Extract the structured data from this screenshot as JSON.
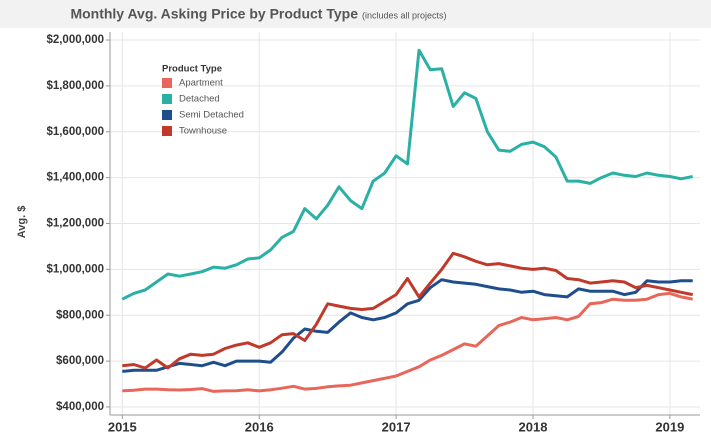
{
  "chart_data": {
    "type": "line",
    "title": "Monthly Avg. Asking Price by Product Type",
    "subtitle": "(includes all projects)",
    "y_label": "Avg. $",
    "legend_title": "Product Type",
    "legend": "upper-left",
    "grid": true,
    "xlim": [
      2014.91,
      2019.22
    ],
    "xticks": [
      2015,
      2016,
      2017,
      2018,
      2019
    ],
    "ylim": [
      365000,
      2035000
    ],
    "yticks": [
      {
        "value": 400000,
        "label": "$400,000"
      },
      {
        "value": 600000,
        "label": "$600,000"
      },
      {
        "value": 800000,
        "label": "$800,000"
      },
      {
        "value": 1000000,
        "label": "$1,000,000"
      },
      {
        "value": 1200000,
        "label": "$1,200,000"
      },
      {
        "value": 1400000,
        "label": "$1,400,000"
      },
      {
        "value": 1600000,
        "label": "$1,600,000"
      },
      {
        "value": 1800000,
        "label": "$1,800,000"
      },
      {
        "value": 2000000,
        "label": "$2,000,000"
      }
    ],
    "x": [
      2015,
      2015.083,
      2015.167,
      2015.25,
      2015.333,
      2015.417,
      2015.5,
      2015.583,
      2015.667,
      2015.75,
      2015.833,
      2015.917,
      2016,
      2016.083,
      2016.167,
      2016.25,
      2016.333,
      2016.417,
      2016.5,
      2016.583,
      2016.667,
      2016.75,
      2016.833,
      2016.917,
      2017,
      2017.083,
      2017.167,
      2017.25,
      2017.333,
      2017.417,
      2017.5,
      2017.583,
      2017.667,
      2017.75,
      2017.833,
      2017.917,
      2018,
      2018.083,
      2018.167,
      2018.25,
      2018.333,
      2018.417,
      2018.5,
      2018.583,
      2018.667,
      2018.75,
      2018.833,
      2018.917,
      2019,
      2019.083,
      2019.167
    ],
    "series": [
      {
        "name": "Apartment",
        "color": "#e8675a",
        "values": [
          470000,
          473000,
          478000,
          478000,
          475000,
          474000,
          476000,
          480000,
          468000,
          470000,
          471000,
          475000,
          470000,
          475000,
          482000,
          490000,
          478000,
          481000,
          488000,
          492000,
          495000,
          505000,
          515000,
          525000,
          535000,
          555000,
          575000,
          605000,
          625000,
          650000,
          675000,
          665000,
          710000,
          755000,
          770000,
          790000,
          780000,
          785000,
          790000,
          780000,
          795000,
          850000,
          855000,
          870000,
          865000,
          865000,
          870000,
          890000,
          895000,
          880000,
          870000
        ]
      },
      {
        "name": "Detached",
        "color": "#2ab0a5",
        "values": [
          870000,
          895000,
          910000,
          945000,
          980000,
          970000,
          980000,
          990000,
          1010000,
          1005000,
          1020000,
          1045000,
          1050000,
          1085000,
          1140000,
          1165000,
          1265000,
          1220000,
          1280000,
          1360000,
          1300000,
          1265000,
          1385000,
          1420000,
          1495000,
          1460000,
          1955000,
          1870000,
          1875000,
          1710000,
          1770000,
          1745000,
          1600000,
          1520000,
          1515000,
          1545000,
          1555000,
          1535000,
          1490000,
          1385000,
          1385000,
          1375000,
          1400000,
          1420000,
          1410000,
          1405000,
          1420000,
          1410000,
          1405000,
          1395000,
          1405000
        ]
      },
      {
        "name": "Semi Detached",
        "color": "#1f4e8c",
        "values": [
          555000,
          560000,
          560000,
          560000,
          575000,
          590000,
          585000,
          580000,
          595000,
          580000,
          600000,
          600000,
          600000,
          595000,
          640000,
          700000,
          740000,
          730000,
          725000,
          770000,
          810000,
          790000,
          780000,
          790000,
          810000,
          850000,
          865000,
          920000,
          955000,
          945000,
          940000,
          935000,
          925000,
          915000,
          910000,
          900000,
          905000,
          890000,
          885000,
          880000,
          915000,
          905000,
          905000,
          905000,
          890000,
          900000,
          950000,
          945000,
          945000,
          950000,
          950000
        ]
      },
      {
        "name": "Townhouse",
        "color": "#c0392b",
        "values": [
          580000,
          585000,
          570000,
          605000,
          570000,
          610000,
          630000,
          625000,
          630000,
          655000,
          670000,
          680000,
          660000,
          680000,
          715000,
          720000,
          690000,
          760000,
          850000,
          840000,
          830000,
          825000,
          830000,
          860000,
          890000,
          960000,
          880000,
          940000,
          1000000,
          1070000,
          1055000,
          1035000,
          1020000,
          1025000,
          1015000,
          1005000,
          1000000,
          1005000,
          995000,
          960000,
          955000,
          940000,
          945000,
          950000,
          945000,
          920000,
          930000,
          920000,
          910000,
          900000,
          890000
        ]
      }
    ]
  }
}
